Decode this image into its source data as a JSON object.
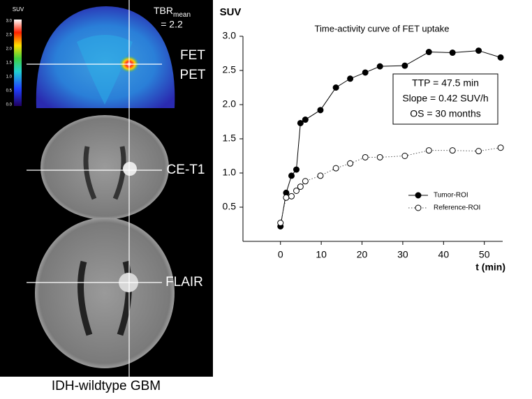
{
  "panel": {
    "scale_label": "SUV",
    "scale_ticks": [
      "3.0",
      "2.5",
      "2.0",
      "1.5",
      "1.0",
      "0.5",
      "0.0"
    ],
    "tbr": "TBR",
    "tbr_sub": "mean",
    "tbr_value": "= 2.2",
    "pet_label": [
      "FET",
      "PET"
    ],
    "t1_label": "CE-T1",
    "flair_label": "FLAIR",
    "caption": "IDH-wildtype GBM"
  },
  "chart_data": {
    "type": "line",
    "title": "Time-activity curve of FET uptake",
    "y_label": "SUV",
    "x_label": "t (min)",
    "x": [
      0,
      1.4,
      2.7,
      3.9,
      4.9,
      6.1,
      9.8,
      13.6,
      17.1,
      20.8,
      24.4,
      30.5,
      36.4,
      42.2,
      48.6,
      54
    ],
    "series": [
      {
        "name": "Tumor-ROI",
        "color": "#000000",
        "marker_fill": "#000000",
        "line_style": "solid",
        "values": [
          0.22,
          0.71,
          0.96,
          1.05,
          1.73,
          1.78,
          1.92,
          2.25,
          2.38,
          2.47,
          2.56,
          2.57,
          2.77,
          2.76,
          2.79,
          2.69
        ]
      },
      {
        "name": "Reference-ROI",
        "color": "#555555",
        "marker_fill": "#ffffff",
        "line_style": "dotted",
        "values": [
          0.27,
          0.64,
          0.66,
          0.74,
          0.8,
          0.88,
          0.96,
          1.07,
          1.14,
          1.23,
          1.23,
          1.25,
          1.33,
          1.33,
          1.32,
          1.37
        ]
      }
    ],
    "xlim": [
      -9.2,
      54.5
    ],
    "ylim": [
      0,
      3.0
    ],
    "xticks": [
      0,
      10,
      20,
      30,
      40,
      50
    ],
    "yticks": [
      0.5,
      {
        "value": 1,
        "label": "1.0"
      },
      1.5,
      {
        "value": 2,
        "label": "2.0"
      },
      2.5,
      {
        "value": 3,
        "label": "3.0"
      }
    ],
    "annotation": [
      "TTP = 47.5 min",
      "Slope = 0.42 SUV/h",
      "OS = 30 months"
    ],
    "legend": "lower-right",
    "grid": false
  }
}
